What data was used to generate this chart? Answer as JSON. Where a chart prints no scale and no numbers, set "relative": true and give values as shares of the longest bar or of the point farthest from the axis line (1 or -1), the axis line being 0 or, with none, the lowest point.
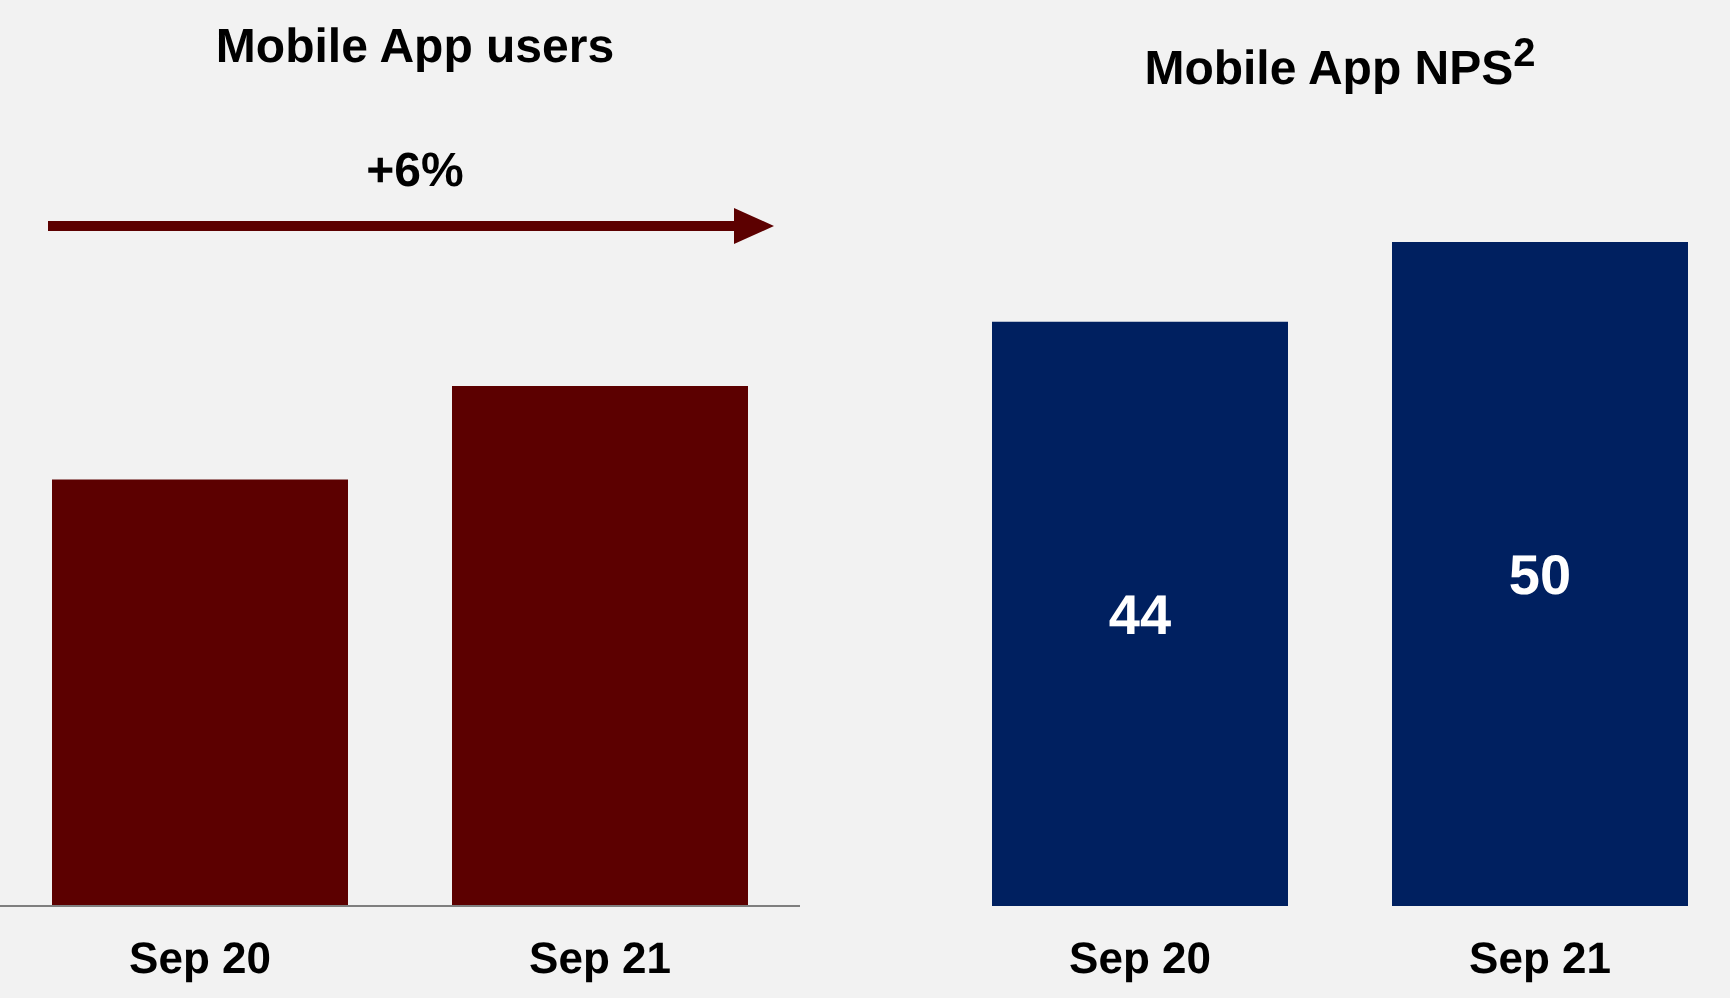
{
  "chart_data": [
    {
      "type": "bar",
      "title": "Mobile App users",
      "categories": [
        "Sep 20",
        "Sep 21"
      ],
      "values": [
        0.82,
        1
      ],
      "color": "#5c0000",
      "relative": true,
      "annotations": [
        "+6%"
      ]
    },
    {
      "type": "bar",
      "title": "Mobile App NPS$^{2}$",
      "categories": [
        "Sep 20",
        "Sep 21"
      ],
      "values": [
        44,
        50
      ],
      "color": "#002060",
      "data_labels": true
    }
  ]
}
